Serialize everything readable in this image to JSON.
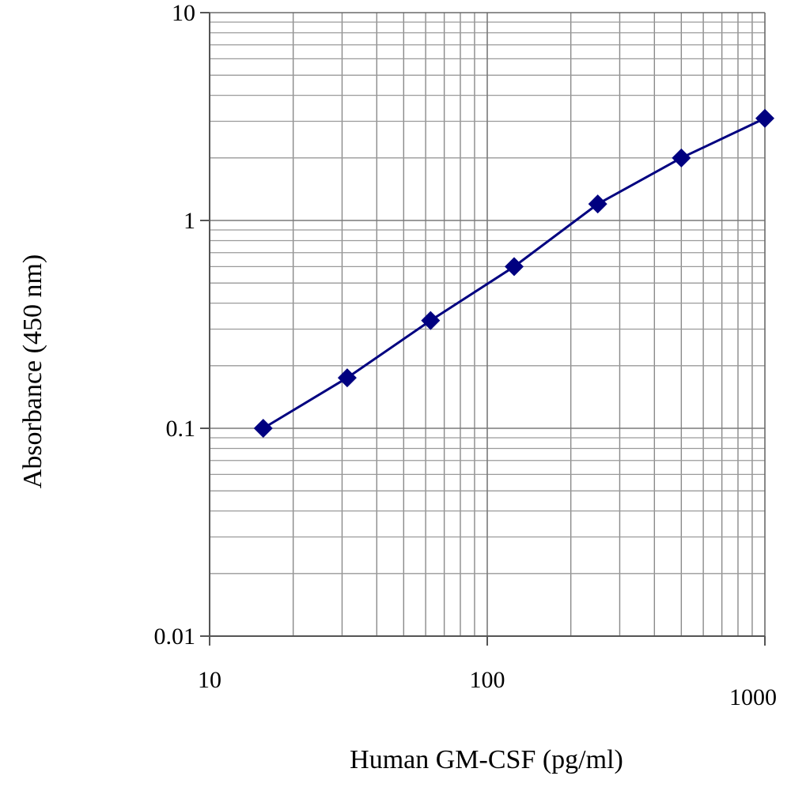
{
  "chart_data": {
    "type": "line",
    "xlabel": "Human GM-CSF (pg/ml)",
    "ylabel": "Absorbance (450 nm)",
    "x_scale": "log",
    "y_scale": "log",
    "xlim": [
      10,
      1000
    ],
    "ylim": [
      0.01,
      10
    ],
    "x_ticks": [
      10,
      100,
      1000
    ],
    "x_tick_labels": [
      "10",
      "100",
      "1000"
    ],
    "y_ticks": [
      0.01,
      0.1,
      1,
      10
    ],
    "y_tick_labels": [
      "0.01",
      "0.1",
      "1",
      "10"
    ],
    "grid": true,
    "series": [
      {
        "color": "#000080",
        "marker": "diamond",
        "x": [
          15.6,
          31.3,
          62.5,
          125,
          250,
          500,
          1000
        ],
        "y": [
          0.1,
          0.175,
          0.33,
          0.6,
          1.2,
          2.0,
          3.1
        ]
      }
    ]
  }
}
